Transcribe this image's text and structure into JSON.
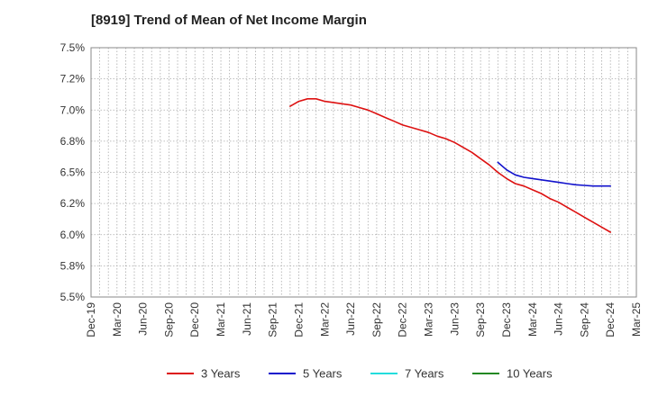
{
  "title": "[8919]  Trend of Mean of Net Income Margin",
  "chart_data": {
    "type": "line",
    "title": "[8919]  Trend of Mean of Net Income Margin",
    "xlabel": "",
    "ylabel": "",
    "grid": true,
    "legend_position": "bottom",
    "x_ticks": [
      "Dec-19",
      "Mar-20",
      "Jun-20",
      "Sep-20",
      "Dec-20",
      "Mar-21",
      "Jun-21",
      "Sep-21",
      "Dec-21",
      "Mar-22",
      "Jun-22",
      "Sep-22",
      "Dec-22",
      "Mar-23",
      "Jun-23",
      "Sep-23",
      "Dec-23",
      "Mar-24",
      "Jun-24",
      "Sep-24",
      "Dec-24",
      "Mar-25"
    ],
    "y_ticks": [
      "5.5%",
      "5.8%",
      "6.0%",
      "6.2%",
      "6.5%",
      "6.8%",
      "7.0%",
      "7.2%",
      "7.5%"
    ],
    "ylim": [
      5.5,
      7.5
    ],
    "series": [
      {
        "name": "3 Years",
        "color": "#dd1111",
        "x": [
          "Nov-21",
          "Dec-21",
          "Jan-22",
          "Feb-22",
          "Mar-22",
          "Apr-22",
          "May-22",
          "Jun-22",
          "Jul-22",
          "Aug-22",
          "Sep-22",
          "Oct-22",
          "Nov-22",
          "Dec-22",
          "Jan-23",
          "Feb-23",
          "Mar-23",
          "Apr-23",
          "May-23",
          "Jun-23",
          "Jul-23",
          "Aug-23",
          "Sep-23",
          "Oct-23",
          "Nov-23",
          "Dec-23",
          "Jan-24",
          "Feb-24",
          "Mar-24",
          "Apr-24",
          "May-24",
          "Jun-24",
          "Jul-24",
          "Aug-24",
          "Sep-24",
          "Oct-24",
          "Nov-24",
          "Dec-24"
        ],
        "values": [
          7.03,
          7.07,
          7.09,
          7.09,
          7.07,
          7.06,
          7.05,
          7.04,
          7.02,
          7.0,
          6.97,
          6.94,
          6.91,
          6.88,
          6.86,
          6.84,
          6.82,
          6.79,
          6.77,
          6.74,
          6.7,
          6.66,
          6.61,
          6.56,
          6.5,
          6.45,
          6.41,
          6.39,
          6.36,
          6.33,
          6.29,
          6.26,
          6.22,
          6.18,
          6.14,
          6.1,
          6.06,
          6.02
        ]
      },
      {
        "name": "5 Years",
        "color": "#1111cc",
        "x": [
          "Nov-23",
          "Dec-23",
          "Jan-24",
          "Feb-24",
          "Mar-24",
          "Apr-24",
          "May-24",
          "Jun-24",
          "Jul-24",
          "Aug-24",
          "Sep-24",
          "Oct-24",
          "Nov-24",
          "Dec-24"
        ],
        "values": [
          6.58,
          6.52,
          6.48,
          6.46,
          6.45,
          6.44,
          6.43,
          6.42,
          6.41,
          6.4,
          6.395,
          6.39,
          6.39,
          6.39
        ]
      },
      {
        "name": "7 Years",
        "color": "#22dddd",
        "x": [],
        "values": []
      },
      {
        "name": "10 Years",
        "color": "#228822",
        "x": [],
        "values": []
      }
    ]
  }
}
